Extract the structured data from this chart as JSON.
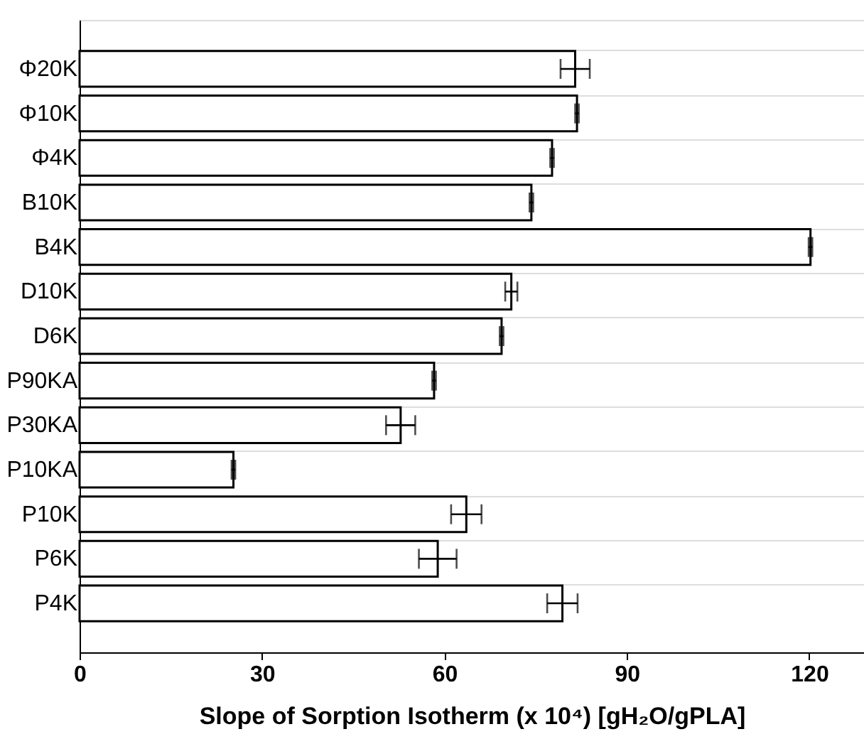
{
  "chart_data": {
    "type": "bar",
    "orientation": "horizontal",
    "xlabel": "Slope of Sorption Isotherm (x 10⁴) [gH₂O/gPLA]",
    "categories": [
      "Φ20K",
      "Φ10K",
      "Φ4K",
      "B10K",
      "B4K",
      "D10K",
      "D6K",
      "P90KA",
      "P30KA",
      "P10KA",
      "P10K",
      "P6K",
      "P4K"
    ],
    "values": [
      81.5,
      81.8,
      77.7,
      74.3,
      120.2,
      71.0,
      69.4,
      58.3,
      52.8,
      25.3,
      63.6,
      58.9,
      79.4
    ],
    "errors": [
      2.4,
      0.3,
      0.3,
      0.3,
      0.3,
      1.0,
      0.3,
      0.3,
      2.4,
      0.3,
      2.5,
      3.1,
      2.5
    ],
    "color": "#ffffff",
    "xlim": [
      0,
      129
    ],
    "xticks": [
      0,
      30,
      60,
      90,
      120
    ],
    "grid": "y"
  }
}
